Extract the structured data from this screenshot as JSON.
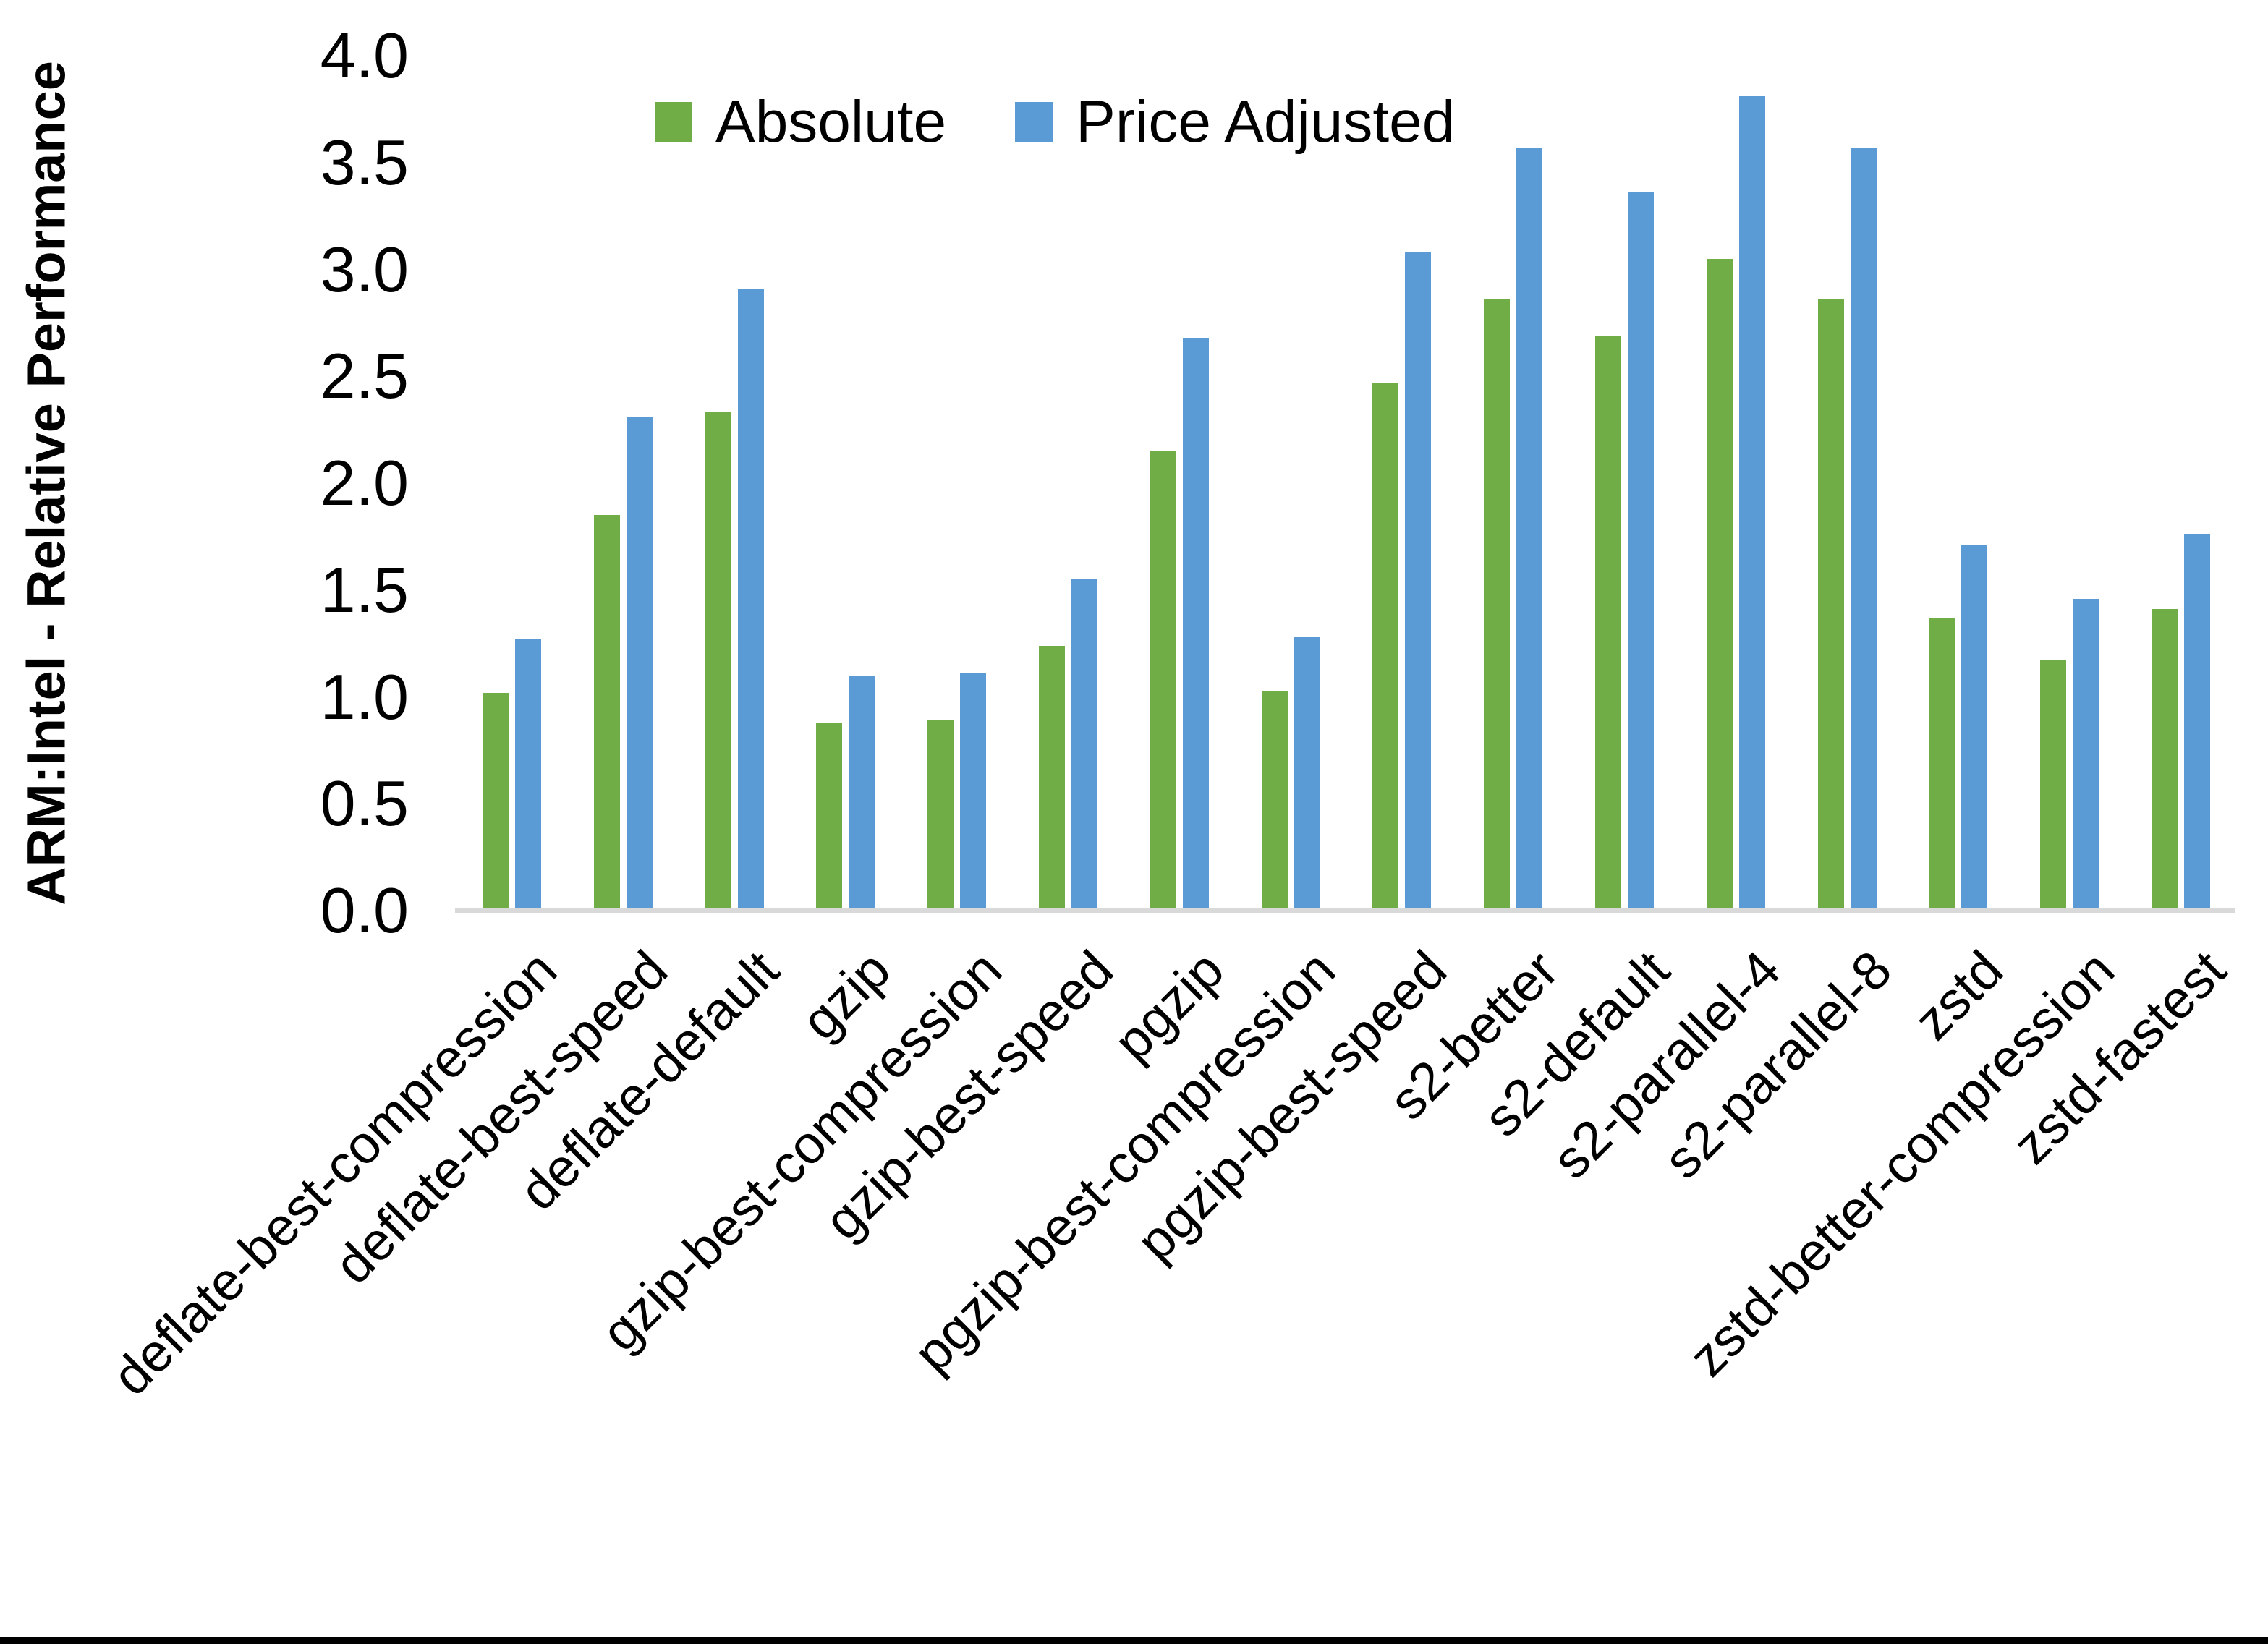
{
  "y_axis_title": "ARM:Intel - Relative Performance",
  "chart_data": {
    "type": "bar",
    "title": "",
    "xlabel": "",
    "ylabel": "ARM:Intel - Relative Performance",
    "ylim": [
      0.0,
      4.0
    ],
    "ytick_step": 0.5,
    "yticks": [
      "0.0",
      "0.5",
      "1.0",
      "1.5",
      "2.0",
      "2.5",
      "3.0",
      "3.5",
      "4.0"
    ],
    "grid": false,
    "legend_position": "top-center",
    "axis_line_color": "#d9d9d9",
    "categories": [
      "deflate-best-compression",
      "deflate-best-speed",
      "deflate-default",
      "gzip",
      "gzip-best-compression",
      "gzip-best-speed",
      "pgzip",
      "pgzip-best-compression",
      "pgzip-best-speed",
      "s2-better",
      "s2-default",
      "s2-parallel-4",
      "s2-parallel-8",
      "zstd",
      "zstd-better-compression",
      "zstd-fastest"
    ],
    "series": [
      {
        "name": "Absolute",
        "color": "#70AD47",
        "values": [
          1.02,
          1.85,
          2.33,
          0.88,
          0.89,
          1.24,
          2.15,
          1.03,
          2.47,
          2.86,
          2.69,
          3.05,
          2.86,
          1.37,
          1.17,
          1.41
        ]
      },
      {
        "name": "Price Adjusted",
        "color": "#5B9BD5",
        "values": [
          1.27,
          2.31,
          2.91,
          1.1,
          1.11,
          1.55,
          2.68,
          1.28,
          3.08,
          3.57,
          3.36,
          3.81,
          3.57,
          1.71,
          1.46,
          1.76
        ]
      }
    ]
  }
}
